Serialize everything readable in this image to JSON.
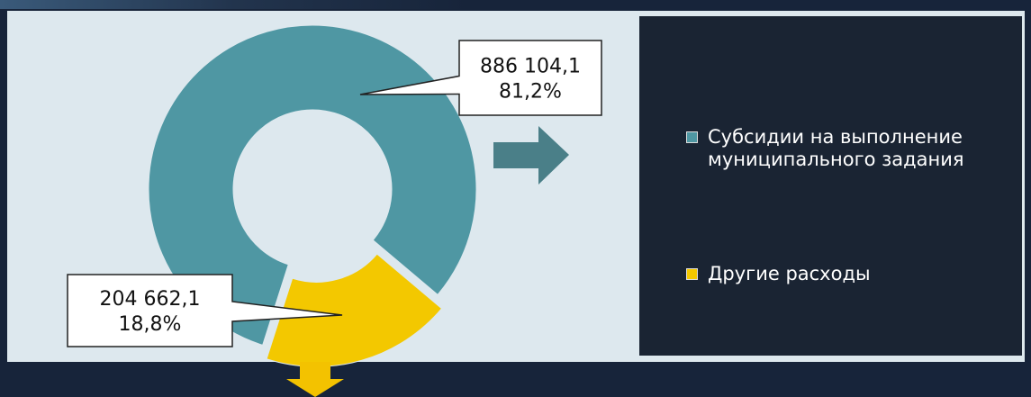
{
  "chart_data": {
    "type": "donut",
    "categories": [
      "Субсидии на выполнение муниципального задания",
      "Другие расходы"
    ],
    "values": [
      886104.1,
      204662.1
    ],
    "value_labels": [
      "886 104,1",
      "204 662,1"
    ],
    "percent_labels": [
      "81,2%",
      "18,8%"
    ],
    "colors": [
      "#4f97a3",
      "#f3c800"
    ],
    "legend": "right"
  }
}
